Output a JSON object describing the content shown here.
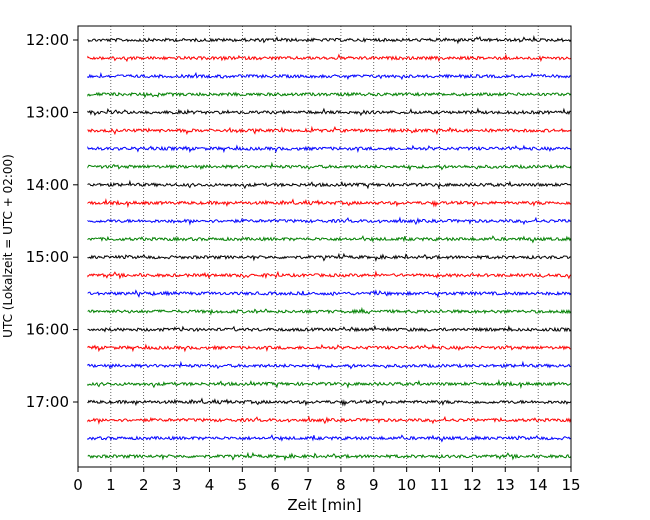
{
  "chart_data": {
    "type": "line",
    "chart_kind": "helicorder (seismogram drum plot)",
    "xlabel": "Zeit  [min]",
    "ylabel": "UTC (Lokalzeit = UTC + 02:00)",
    "xlim": [
      0,
      15
    ],
    "x_ticks": [
      "0",
      "1",
      "2",
      "3",
      "4",
      "5",
      "6",
      "7",
      "8",
      "9",
      "10",
      "11",
      "12",
      "13",
      "14",
      "15"
    ],
    "y_tick_labels": [
      "12:00",
      "13:00",
      "14:00",
      "15:00",
      "16:00",
      "17:00"
    ],
    "grid": "vertical dotted lines at each minute",
    "trace_colors": [
      "#000000",
      "#ff0000",
      "#0000ff",
      "#008000"
    ],
    "trace_interval_min": 15,
    "series": [
      {
        "start": "12:00"
      },
      {
        "start": "12:15"
      },
      {
        "start": "12:30"
      },
      {
        "start": "12:45"
      },
      {
        "start": "13:00"
      },
      {
        "start": "13:15"
      },
      {
        "start": "13:30"
      },
      {
        "start": "13:45"
      },
      {
        "start": "14:00"
      },
      {
        "start": "14:15"
      },
      {
        "start": "14:30"
      },
      {
        "start": "14:45"
      },
      {
        "start": "15:00"
      },
      {
        "start": "15:15"
      },
      {
        "start": "15:30"
      },
      {
        "start": "15:45"
      },
      {
        "start": "16:00"
      },
      {
        "start": "16:15"
      },
      {
        "start": "16:30"
      },
      {
        "start": "16:45"
      },
      {
        "start": "17:00"
      },
      {
        "start": "17:15"
      },
      {
        "start": "17:30"
      },
      {
        "start": "17:45"
      }
    ]
  }
}
